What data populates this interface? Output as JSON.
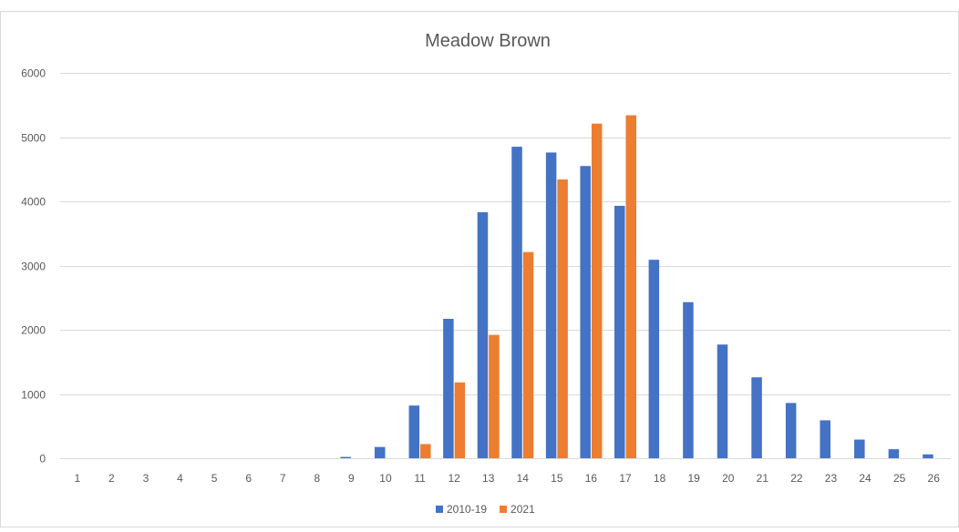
{
  "chart_data": {
    "type": "bar",
    "title": "Meadow Brown",
    "xlabel": "",
    "ylabel": "",
    "ylim": [
      0,
      6000
    ],
    "yticks": [
      0,
      1000,
      2000,
      3000,
      4000,
      5000,
      6000
    ],
    "grid": "horizontal",
    "legend_position": "bottom",
    "categories": [
      "1",
      "2",
      "3",
      "4",
      "5",
      "6",
      "7",
      "8",
      "9",
      "10",
      "11",
      "12",
      "13",
      "14",
      "15",
      "16",
      "17",
      "18",
      "19",
      "20",
      "21",
      "22",
      "23",
      "24",
      "25",
      "26"
    ],
    "series": [
      {
        "name": "2010-19",
        "color": "#4472c4",
        "values": [
          0,
          0,
          0,
          0,
          0,
          0,
          0,
          0,
          20,
          175,
          820,
          2170,
          3830,
          4850,
          4760,
          4550,
          3930,
          3090,
          2430,
          1770,
          1260,
          860,
          590,
          290,
          140,
          60
        ]
      },
      {
        "name": "2021",
        "color": "#ed7d31",
        "values": [
          0,
          0,
          0,
          0,
          0,
          0,
          0,
          0,
          0,
          0,
          220,
          1180,
          1920,
          3210,
          4340,
          5210,
          5340,
          0,
          0,
          0,
          0,
          0,
          0,
          0,
          0,
          0
        ]
      }
    ]
  }
}
